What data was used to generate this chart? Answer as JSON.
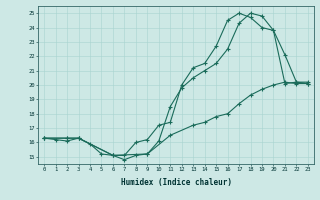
{
  "xlabel": "Humidex (Indice chaleur)",
  "ylabel": "",
  "xlim": [
    -0.5,
    23.5
  ],
  "ylim": [
    14.5,
    25.5
  ],
  "xticks": [
    0,
    1,
    2,
    3,
    4,
    5,
    6,
    7,
    8,
    9,
    10,
    11,
    12,
    13,
    14,
    15,
    16,
    17,
    18,
    19,
    20,
    21,
    22,
    23
  ],
  "yticks": [
    15,
    16,
    17,
    18,
    19,
    20,
    21,
    22,
    23,
    24,
    25
  ],
  "background_color": "#cde8e5",
  "line_color": "#1a6b5a",
  "line1_x": [
    0,
    1,
    2,
    3,
    4,
    5,
    6,
    7,
    8,
    9,
    10,
    11,
    12,
    13,
    14,
    15,
    16,
    17,
    18,
    19,
    20,
    21,
    22,
    23
  ],
  "line1_y": [
    16.3,
    16.2,
    16.1,
    16.3,
    15.9,
    15.2,
    15.1,
    14.8,
    15.1,
    15.2,
    16.1,
    18.5,
    19.8,
    20.5,
    21.0,
    21.5,
    22.5,
    24.3,
    25.0,
    24.8,
    23.8,
    22.1,
    20.2,
    20.1
  ],
  "line2_x": [
    0,
    2,
    3,
    6,
    7,
    8,
    9,
    10,
    11,
    12,
    13,
    14,
    15,
    16,
    17,
    18,
    19,
    20,
    21,
    22,
    23
  ],
  "line2_y": [
    16.3,
    16.3,
    16.3,
    15.1,
    15.1,
    16.0,
    16.2,
    17.2,
    17.4,
    20.0,
    21.2,
    21.5,
    22.7,
    24.5,
    25.0,
    24.7,
    24.0,
    23.8,
    20.1,
    20.2,
    20.2
  ],
  "line3_x": [
    0,
    2,
    3,
    6,
    9,
    11,
    13,
    14,
    15,
    16,
    17,
    18,
    19,
    20,
    21,
    22,
    23
  ],
  "line3_y": [
    16.3,
    16.3,
    16.3,
    15.1,
    15.2,
    16.5,
    17.2,
    17.4,
    17.8,
    18.0,
    18.7,
    19.3,
    19.7,
    20.0,
    20.2,
    20.1,
    20.1
  ]
}
